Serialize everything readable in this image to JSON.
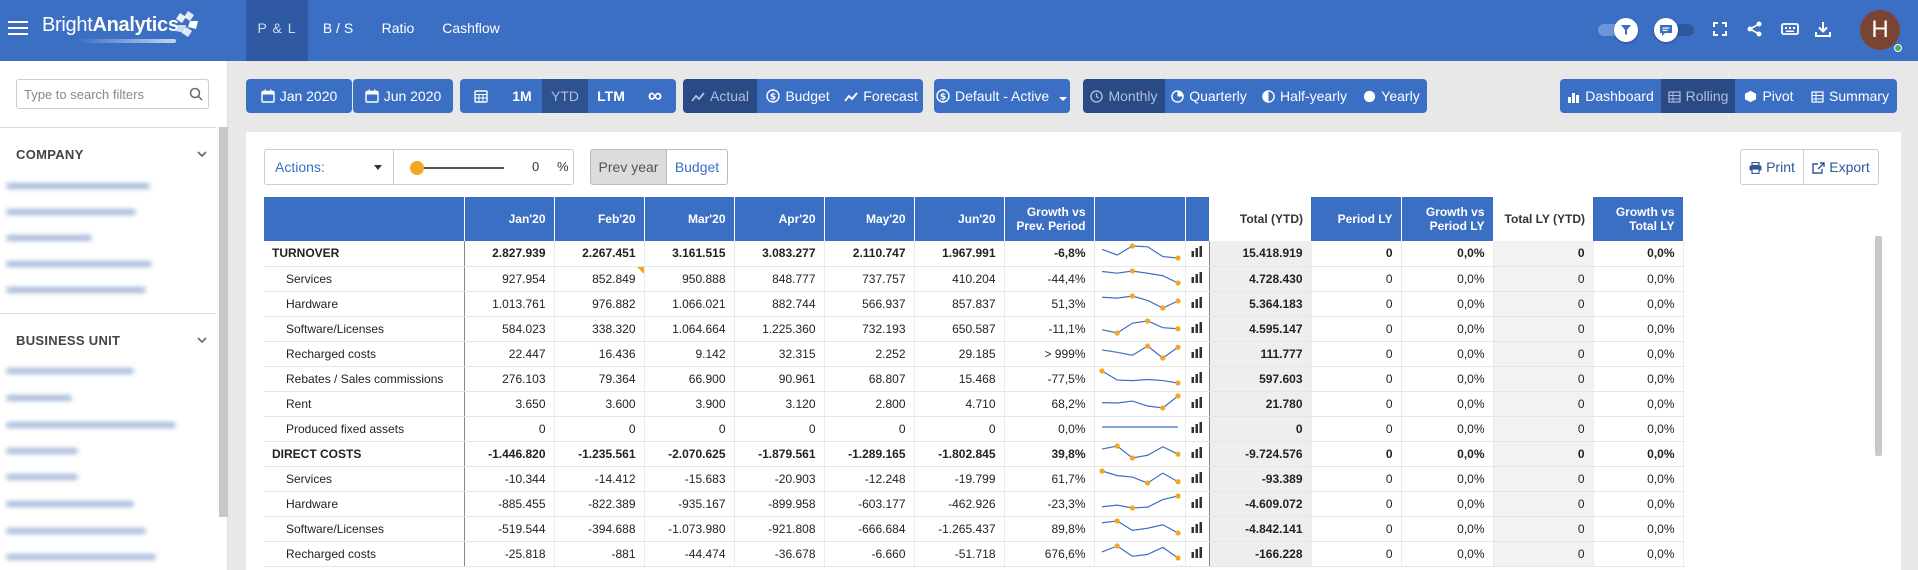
{
  "brand": {
    "name_light": "Bright",
    "name_bold": "Analytics"
  },
  "nav": {
    "tabs": [
      {
        "label": "P & L",
        "active": true
      },
      {
        "label": "B / S",
        "active": false
      },
      {
        "label": "Ratio",
        "active": false
      },
      {
        "label": "Cashflow",
        "active": false
      }
    ]
  },
  "user": {
    "initial": "H"
  },
  "sidebar": {
    "search_placeholder": "Type to search filters",
    "sections": [
      {
        "title": "COMPANY"
      },
      {
        "title": "BUSINESS UNIT"
      }
    ]
  },
  "toolbar": {
    "date_from": "Jan 2020",
    "date_to": "Jun 2020",
    "periods": [
      "1M",
      "YTD",
      "LTM",
      "∞"
    ],
    "active_period": "YTD",
    "scenarios": {
      "actual": "Actual",
      "budget": "Budget",
      "forecast": "Forecast"
    },
    "layout_select": "Default - Active",
    "granularity": {
      "monthly": "Monthly",
      "quarterly": "Quarterly",
      "half_yearly": "Half-yearly",
      "yearly": "Yearly"
    },
    "views": {
      "dashboard": "Dashboard",
      "rolling": "Rolling",
      "pivot": "Pivot",
      "summary": "Summary"
    }
  },
  "panel": {
    "actions_label": "Actions:",
    "slider_value": "0",
    "slider_unit": "%",
    "compare_prev": "Prev year",
    "compare_budget": "Budget",
    "print": "Print",
    "export": "Export"
  },
  "table": {
    "headers": {
      "months": [
        "Jan'20",
        "Feb'20",
        "Mar'20",
        "Apr'20",
        "May'20",
        "Jun'20"
      ],
      "growth": "Growth vs Prev. Period",
      "total_ytd": "Total (YTD)",
      "period_ly": "Period LY",
      "growth_ly": "Growth vs Period LY",
      "total_ly": "Total LY (YTD)",
      "growth_total_ly": "Growth vs Total LY"
    },
    "rows": [
      {
        "label": "TURNOVER",
        "bold": true,
        "m": [
          "2.827.939",
          "2.267.451",
          "3.161.515",
          "3.083.277",
          "2.110.747",
          "1.967.991"
        ],
        "growth": "-6,8%",
        "total": "15.418.919",
        "period_ly": "0",
        "growth_ly": "0,0%",
        "total_ly": "0",
        "growth_total_ly": "0,0%"
      },
      {
        "label": "Services",
        "bold": false,
        "m": [
          "927.954",
          "852.849",
          "950.888",
          "848.777",
          "737.757",
          "410.204"
        ],
        "growth": "-44,4%",
        "total": "4.728.430",
        "period_ly": "0",
        "growth_ly": "0,0%",
        "total_ly": "0",
        "growth_total_ly": "0,0%"
      },
      {
        "label": "Hardware",
        "bold": false,
        "m": [
          "1.013.761",
          "976.882",
          "1.066.021",
          "882.744",
          "566.937",
          "857.837"
        ],
        "growth": "51,3%",
        "total": "5.364.183",
        "period_ly": "0",
        "growth_ly": "0,0%",
        "total_ly": "0",
        "growth_total_ly": "0,0%"
      },
      {
        "label": "Software/Licenses",
        "bold": false,
        "m": [
          "584.023",
          "338.320",
          "1.064.664",
          "1.225.360",
          "732.193",
          "650.587"
        ],
        "growth": "-11,1%",
        "total": "4.595.147",
        "period_ly": "0",
        "growth_ly": "0,0%",
        "total_ly": "0",
        "growth_total_ly": "0,0%"
      },
      {
        "label": "Recharged costs",
        "bold": false,
        "m": [
          "22.447",
          "16.436",
          "9.142",
          "32.315",
          "2.252",
          "29.185"
        ],
        "growth": "> 999%",
        "total": "111.777",
        "period_ly": "0",
        "growth_ly": "0,0%",
        "total_ly": "0",
        "growth_total_ly": "0,0%"
      },
      {
        "label": "Rebates / Sales commissions",
        "bold": false,
        "m": [
          "276.103",
          "79.364",
          "66.900",
          "90.961",
          "68.807",
          "15.468"
        ],
        "growth": "-77,5%",
        "total": "597.603",
        "period_ly": "0",
        "growth_ly": "0,0%",
        "total_ly": "0",
        "growth_total_ly": "0,0%"
      },
      {
        "label": "Rent",
        "bold": false,
        "m": [
          "3.650",
          "3.600",
          "3.900",
          "3.120",
          "2.800",
          "4.710"
        ],
        "growth": "68,2%",
        "total": "21.780",
        "period_ly": "0",
        "growth_ly": "0,0%",
        "total_ly": "0",
        "growth_total_ly": "0,0%"
      },
      {
        "label": "Produced fixed assets",
        "bold": false,
        "m": [
          "0",
          "0",
          "0",
          "0",
          "0",
          "0"
        ],
        "growth": "0,0%",
        "total": "0",
        "period_ly": "0",
        "growth_ly": "0,0%",
        "total_ly": "0",
        "growth_total_ly": "0,0%"
      },
      {
        "label": "DIRECT COSTS",
        "bold": true,
        "m": [
          "-1.446.820",
          "-1.235.561",
          "-2.070.625",
          "-1.879.561",
          "-1.289.165",
          "-1.802.845"
        ],
        "growth": "39,8%",
        "total": "-9.724.576",
        "period_ly": "0",
        "growth_ly": "0,0%",
        "total_ly": "0",
        "growth_total_ly": "0,0%"
      },
      {
        "label": "Services",
        "bold": false,
        "m": [
          "-10.344",
          "-14.412",
          "-15.683",
          "-20.903",
          "-12.248",
          "-19.799"
        ],
        "growth": "61,7%",
        "total": "-93.389",
        "period_ly": "0",
        "growth_ly": "0,0%",
        "total_ly": "0",
        "growth_total_ly": "0,0%"
      },
      {
        "label": "Hardware",
        "bold": false,
        "m": [
          "-885.455",
          "-822.389",
          "-935.167",
          "-899.958",
          "-603.177",
          "-462.926"
        ],
        "growth": "-23,3%",
        "total": "-4.609.072",
        "period_ly": "0",
        "growth_ly": "0,0%",
        "total_ly": "0",
        "growth_total_ly": "0,0%"
      },
      {
        "label": "Software/Licenses",
        "bold": false,
        "m": [
          "-519.544",
          "-394.688",
          "-1.073.980",
          "-921.808",
          "-666.684",
          "-1.265.437"
        ],
        "growth": "89,8%",
        "total": "-4.842.141",
        "period_ly": "0",
        "growth_ly": "0,0%",
        "total_ly": "0",
        "growth_total_ly": "0,0%"
      },
      {
        "label": "Recharged costs",
        "bold": false,
        "m": [
          "-25.818",
          "-881",
          "-44.474",
          "-36.678",
          "-6.660",
          "-51.718"
        ],
        "growth": "676,6%",
        "total": "-166.228",
        "period_ly": "0",
        "growth_ly": "0,0%",
        "total_ly": "0",
        "growth_total_ly": "0,0%"
      }
    ]
  },
  "colors": {
    "primary": "#3b6fc4",
    "navy": "#2a4a86",
    "accent": "#f5a623",
    "sparkline": "#3b6fc4"
  }
}
